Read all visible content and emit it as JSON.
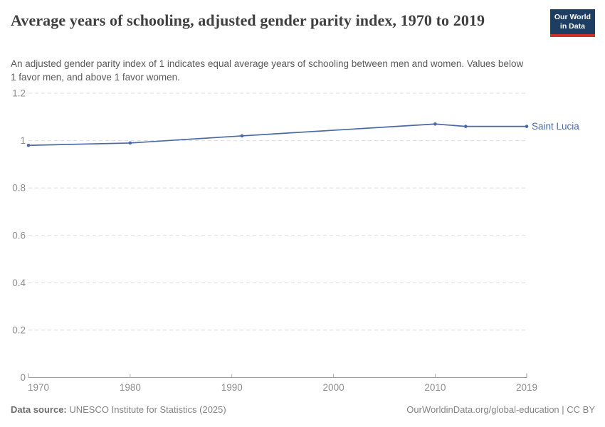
{
  "header": {
    "title": "Average years of schooling, adjusted gender parity index, 1970 to 2019",
    "subtitle": "An adjusted gender parity index of 1 indicates equal average years of schooling between men and women. Values below 1 favor men, and above 1 favor women.",
    "logo": {
      "line1": "Our World",
      "line2": "in Data"
    }
  },
  "chart_data": {
    "type": "line",
    "title": "Average years of schooling, adjusted gender parity index, 1970 to 2019",
    "xlabel": "",
    "ylabel": "",
    "xlim": [
      1970,
      2019
    ],
    "ylim": [
      0,
      1.2
    ],
    "xticks": [
      1970,
      1980,
      1990,
      2000,
      2010,
      2019
    ],
    "yticks": [
      0,
      0.2,
      0.4,
      0.6,
      0.8,
      1,
      1.2
    ],
    "grid": "horizontal-dashed",
    "legend_position": "end-of-line-label",
    "x": [
      1970,
      1980,
      1991,
      2010,
      2013,
      2019
    ],
    "series": [
      {
        "name": "Saint Lucia",
        "color": "#4a69a5",
        "values": [
          0.98,
          0.99,
          1.02,
          1.07,
          1.06,
          1.06
        ]
      }
    ]
  },
  "footer": {
    "source_label": "Data source:",
    "source_text": " UNESCO Institute for Statistics (2025)",
    "link_text": "OurWorldinData.org/global-education | CC BY"
  },
  "colors": {
    "series": "#4a69a5",
    "grid": "#dcdcdc",
    "axis": "#999999",
    "tick": "#b3b3b3",
    "tick_label": "#8e8e8e",
    "title": "#3f3f3f",
    "subtitle": "#5a5a5a",
    "footer": "#848484",
    "logo_bg": "#1d3d63",
    "logo_stripe": "#cf3029",
    "background": "#ffffff"
  }
}
